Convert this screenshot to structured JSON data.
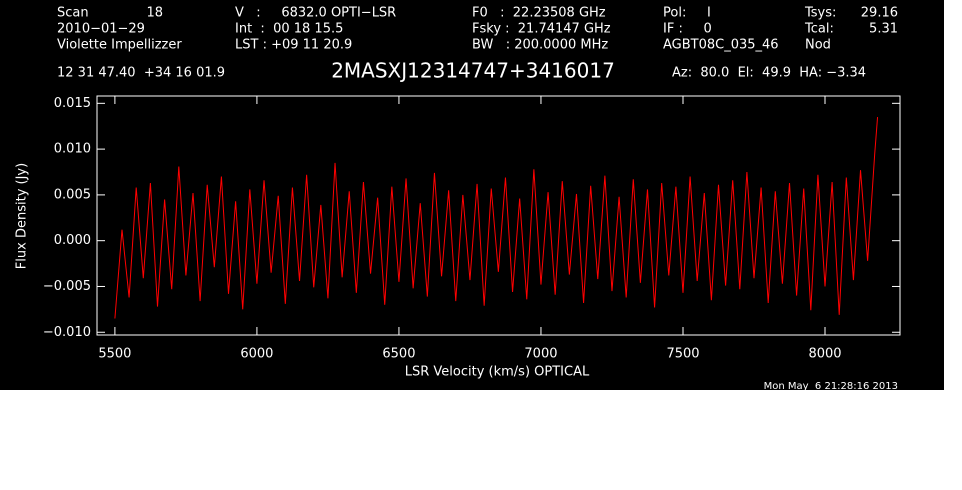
{
  "chart_data": {
    "type": "line",
    "title": "2MASXJ12314747+3416017",
    "header": [
      "Scan",
      "18",
      "V   :     6832.0 OPTI−LSR",
      "F0   :  22.23508 GHz",
      "Pol:     I",
      "Tsys:",
      "29.16",
      "2010−01−29",
      "Int  :  00 18 15.5",
      "Fsky :  21.74147 GHz",
      "IF :     0",
      "Tcal:",
      "5.31",
      "Violette Impellizzer",
      "LST : +09 11 20.9",
      "BW   : 200.0000 MHz",
      "AGBT08C_035_46",
      "Nod",
      "12 31 47.40  +34 16 01.9",
      "Az:  80.0  El:  49.9  HA: −3.34"
    ],
    "timestamp": "Mon May  6 21:28:16 2013",
    "x_label": "LSR Velocity (km/s) OPTICAL",
    "y_label": "Flux Density (Jy)",
    "xlim": [
      5437,
      8264
    ],
    "ylim": [
      -0.0103,
      0.0158
    ],
    "xticks": [
      5500,
      6000,
      6500,
      7000,
      7500,
      8000
    ],
    "yticks": [
      {
        "value": -0.01,
        "label": "−0.010"
      },
      {
        "value": -0.005,
        "label": "−0.005"
      },
      {
        "value": 0,
        "label": "0.000"
      },
      {
        "value": 0.005,
        "label": "0.005"
      },
      {
        "value": 0.01,
        "label": "0.010"
      },
      {
        "value": 0.015,
        "label": "0.015"
      }
    ],
    "x": [
      5500,
      5525,
      5550,
      5575,
      5600,
      5625,
      5650,
      5675,
      5700,
      5725,
      5750,
      5775,
      5800,
      5825,
      5850,
      5875,
      5900,
      5925,
      5950,
      5975,
      6000,
      6025,
      6050,
      6075,
      6100,
      6125,
      6150,
      6175,
      6200,
      6225,
      6250,
      6275,
      6300,
      6325,
      6350,
      6375,
      6400,
      6425,
      6450,
      6475,
      6500,
      6525,
      6550,
      6575,
      6600,
      6625,
      6650,
      6675,
      6700,
      6725,
      6750,
      6775,
      6800,
      6825,
      6850,
      6875,
      6900,
      6925,
      6950,
      6975,
      7000,
      7025,
      7050,
      7075,
      7100,
      7125,
      7150,
      7175,
      7200,
      7225,
      7250,
      7275,
      7300,
      7325,
      7350,
      7375,
      7400,
      7425,
      7450,
      7475,
      7500,
      7525,
      7550,
      7575,
      7600,
      7625,
      7650,
      7675,
      7700,
      7725,
      7750,
      7775,
      7800,
      7825,
      7850,
      7875,
      7900,
      7925,
      7950,
      7975,
      8000,
      8025,
      8050,
      8075,
      8100,
      8125,
      8150,
      8175,
      8185
    ],
    "series": [
      {
        "color": "#ff0000",
        "values": [
          -0.0085,
          0.0012,
          -0.0062,
          0.0058,
          -0.0041,
          0.0063,
          -0.0072,
          0.0045,
          -0.0053,
          0.0081,
          -0.0038,
          0.0052,
          -0.0066,
          0.0061,
          -0.0029,
          0.007,
          -0.0058,
          0.0043,
          -0.0075,
          0.0056,
          -0.0047,
          0.0066,
          -0.0035,
          0.0049,
          -0.0069,
          0.0058,
          -0.0044,
          0.0072,
          -0.0051,
          0.0039,
          -0.0063,
          0.0085,
          -0.004,
          0.0054,
          -0.0057,
          0.0064,
          -0.0036,
          0.0047,
          -0.007,
          0.0059,
          -0.0045,
          0.0068,
          -0.0052,
          0.0041,
          -0.0061,
          0.0074,
          -0.0039,
          0.0055,
          -0.0066,
          0.005,
          -0.0043,
          0.0062,
          -0.0071,
          0.0057,
          -0.0034,
          0.0069,
          -0.0056,
          0.0046,
          -0.0064,
          0.0078,
          -0.0048,
          0.0053,
          -0.0059,
          0.0065,
          -0.0037,
          0.0051,
          -0.0068,
          0.006,
          -0.0042,
          0.0071,
          -0.0055,
          0.0048,
          -0.0062,
          0.0067,
          -0.0046,
          0.0056,
          -0.0073,
          0.0063,
          -0.0038,
          0.0059,
          -0.0057,
          0.007,
          -0.0044,
          0.0052,
          -0.0065,
          0.0061,
          -0.0049,
          0.0066,
          -0.0053,
          0.0075,
          -0.0041,
          0.0058,
          -0.0068,
          0.0054,
          -0.0047,
          0.0063,
          -0.006,
          0.0057,
          -0.0076,
          0.0072,
          -0.005,
          0.0064,
          -0.0081,
          0.0069,
          -0.0043,
          0.0077,
          -0.0022,
          0.0095,
          0.0135
        ]
      }
    ]
  }
}
